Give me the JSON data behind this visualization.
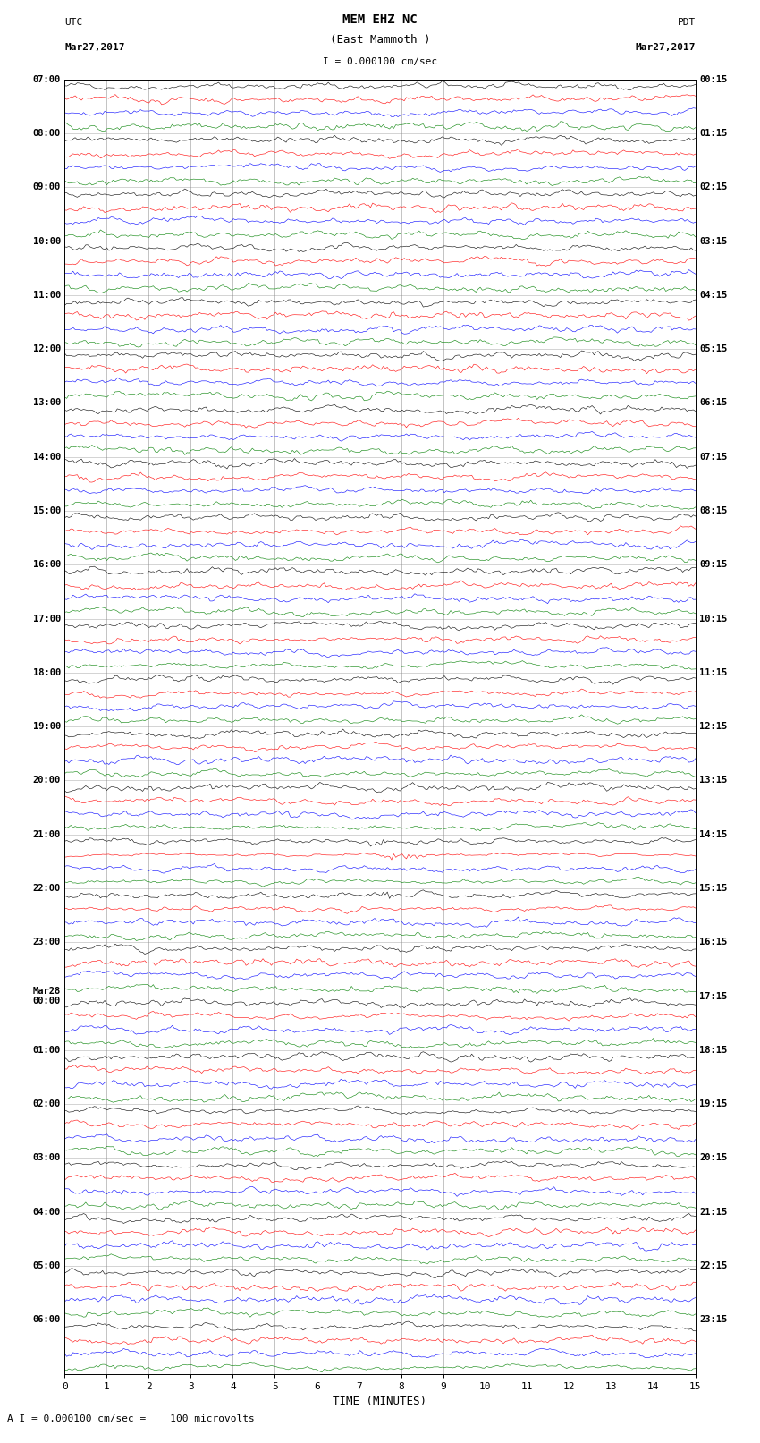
{
  "title_line1": "MEM EHZ NC",
  "title_line2": "(East Mammoth )",
  "scale_label": "I = 0.000100 cm/sec",
  "footer_label": "A I = 0.000100 cm/sec =    100 microvolts",
  "left_header_line1": "UTC",
  "left_header_line2": "Mar27,2017",
  "right_header_line1": "PDT",
  "right_header_line2": "Mar27,2017",
  "xlabel": "TIME (MINUTES)",
  "bg_color": "#ffffff",
  "plot_bg_color": "#ffffff",
  "line_colors": [
    "black",
    "red",
    "blue",
    "green"
  ],
  "grid_color": "#888888",
  "num_rows": 24,
  "traces_per_row": 4,
  "minutes_per_row": 15,
  "figwidth": 8.5,
  "figheight": 16.13,
  "dpi": 100,
  "left_labels": [
    "07:00",
    "08:00",
    "09:00",
    "10:00",
    "11:00",
    "12:00",
    "13:00",
    "14:00",
    "15:00",
    "16:00",
    "17:00",
    "18:00",
    "19:00",
    "20:00",
    "21:00",
    "22:00",
    "23:00",
    "Mar28\n00:00",
    "01:00",
    "02:00",
    "03:00",
    "04:00",
    "05:00",
    "06:00"
  ],
  "right_labels": [
    "00:15",
    "01:15",
    "02:15",
    "03:15",
    "04:15",
    "05:15",
    "06:15",
    "07:15",
    "08:15",
    "09:15",
    "10:15",
    "11:15",
    "12:15",
    "13:15",
    "14:15",
    "15:15",
    "16:15",
    "17:15",
    "18:15",
    "19:15",
    "20:15",
    "21:15",
    "22:15",
    "23:15"
  ],
  "noise_seed": 42
}
